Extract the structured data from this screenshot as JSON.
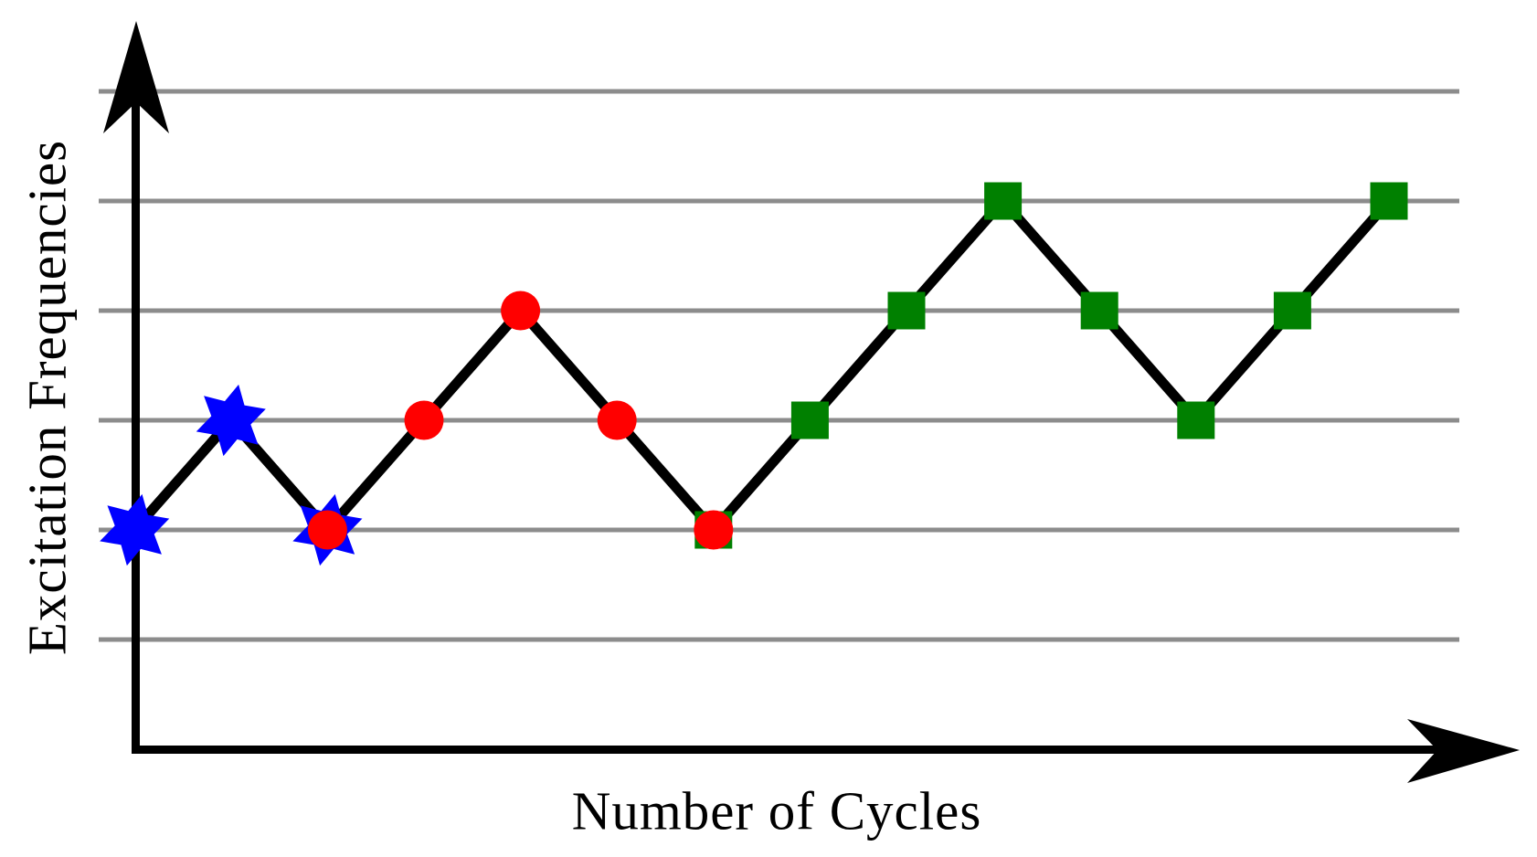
{
  "figure": {
    "background_color": "#ffffff",
    "axis_color": "#000000",
    "grid_color": "#8c8c8c"
  },
  "chart_data": {
    "type": "line",
    "title": "",
    "xlabel": "Number of Cycles",
    "ylabel": "Excitation Frequencies",
    "x_axis": {
      "label": "Number of Cycles",
      "tick_labels": [],
      "arrow": true
    },
    "y_axis": {
      "label": "Excitation Frequencies",
      "tick_labels": [],
      "arrow": true
    },
    "grid": {
      "horizontal_gridlines": true,
      "gridline_levels": [
        0,
        1,
        2,
        3,
        4,
        5
      ],
      "vertical_gridlines": false
    },
    "ylim": [
      0,
      5
    ],
    "legend": false,
    "line_color": "#000000",
    "x": [
      1,
      2,
      3,
      4,
      5,
      6,
      7,
      8,
      9,
      10,
      11,
      12,
      13,
      14
    ],
    "series": [
      {
        "name": "early-cycles-blue-stars",
        "marker": "star",
        "color": "#0000ff",
        "points": [
          {
            "x": 1,
            "y": 1
          },
          {
            "x": 2,
            "y": 2
          },
          {
            "x": 3,
            "y": 1
          }
        ]
      },
      {
        "name": "middle-cycles-red-circles",
        "marker": "circle",
        "color": "#ff0000",
        "points": [
          {
            "x": 3,
            "y": 1
          },
          {
            "x": 4,
            "y": 2
          },
          {
            "x": 5,
            "y": 3
          },
          {
            "x": 6,
            "y": 2
          },
          {
            "x": 7,
            "y": 1
          }
        ]
      },
      {
        "name": "late-cycles-green-squares",
        "marker": "square",
        "color": "#008000",
        "points": [
          {
            "x": 7,
            "y": 1
          },
          {
            "x": 8,
            "y": 2
          },
          {
            "x": 9,
            "y": 3
          },
          {
            "x": 10,
            "y": 4
          },
          {
            "x": 11,
            "y": 3
          },
          {
            "x": 12,
            "y": 2
          },
          {
            "x": 13,
            "y": 3
          },
          {
            "x": 14,
            "y": 4
          }
        ]
      }
    ]
  }
}
